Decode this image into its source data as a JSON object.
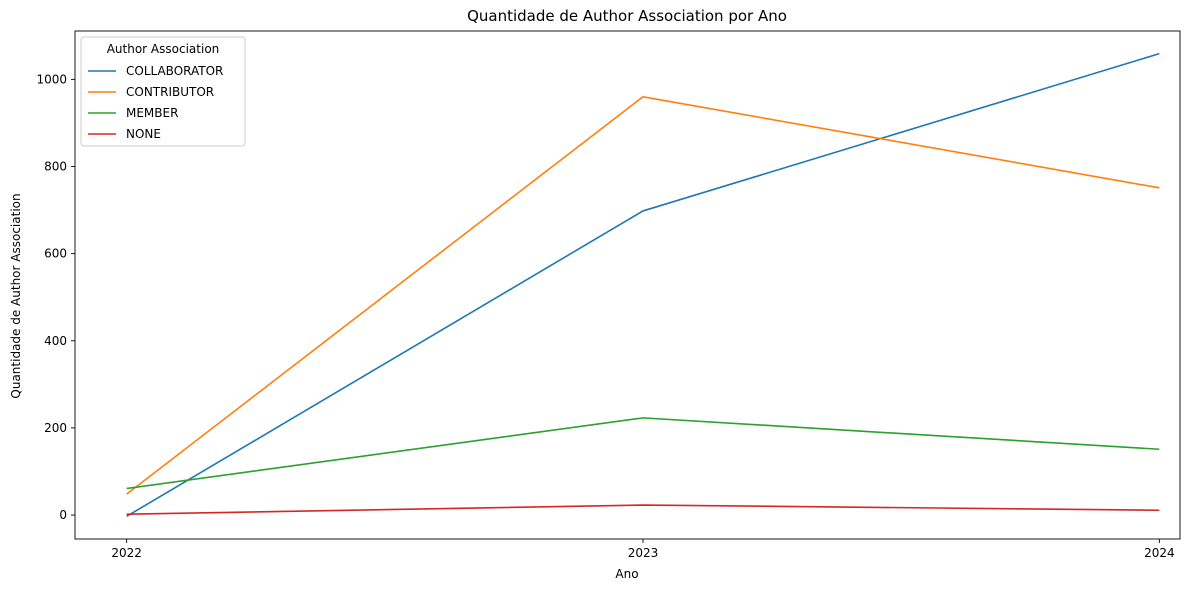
{
  "chart_data": {
    "type": "line",
    "title": "Quantidade de Author Association por Ano",
    "xlabel": "Ano",
    "ylabel": "Quantidade de Author Association",
    "x": [
      2022,
      2023,
      2024
    ],
    "x_tick_labels": [
      "2022",
      "2023",
      "2024"
    ],
    "xlim": [
      2021.9,
      2024.04
    ],
    "ylim": [
      -55,
      1111
    ],
    "y_ticks": [
      0,
      200,
      400,
      600,
      800,
      1000
    ],
    "y_tick_labels": [
      "0",
      "200",
      "400",
      "600",
      "800",
      "1000"
    ],
    "grid": false,
    "legend": {
      "title": "Author Association",
      "position": "top-left"
    },
    "series": [
      {
        "name": "COLLABORATOR",
        "color": "#1f77b4",
        "values": [
          -3,
          698,
          1059
        ]
      },
      {
        "name": "CONTRIBUTOR",
        "color": "#ff7f0e",
        "values": [
          48,
          960,
          751
        ]
      },
      {
        "name": "MEMBER",
        "color": "#2ca02c",
        "values": [
          61,
          223,
          151
        ]
      },
      {
        "name": "NONE",
        "color": "#d62728",
        "values": [
          2,
          23,
          11
        ]
      }
    ]
  }
}
